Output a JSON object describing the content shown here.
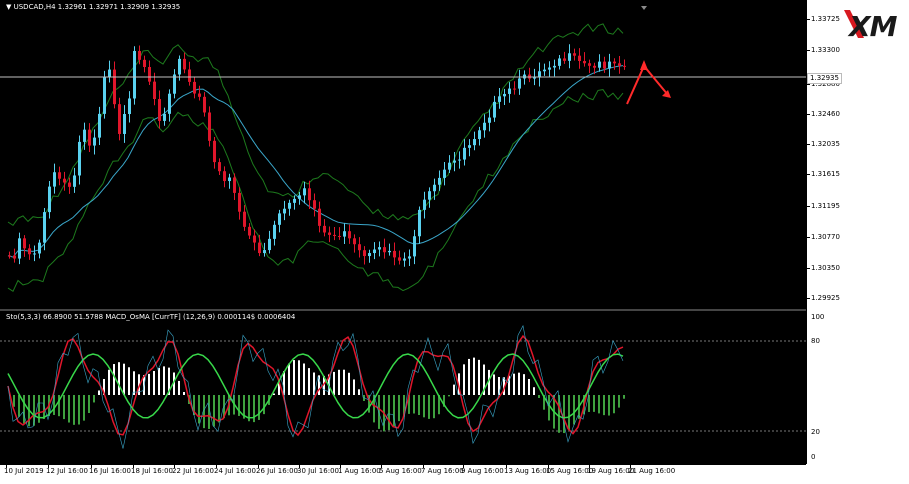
{
  "chart_header": {
    "symbol_line": "▼ USDCAD,H4  1.32961 1.32971 1.32909 1.32935",
    "indicator_line": "Sto(5,3,3) 66.8900 51.5788  MACD_OsMA [CurrTF] (12,26,9) 0.000114$ 0.0006404"
  },
  "price_axis": {
    "ticks": [
      "1.33725",
      "1.33300",
      "1.32880",
      "1.32460",
      "1.32035",
      "1.31615",
      "1.31195",
      "1.30770",
      "1.30350",
      "1.29925"
    ],
    "current_price": "1.32935"
  },
  "oscillator_axis": {
    "ticks": [
      "100",
      "80",
      "20",
      "0"
    ]
  },
  "time_axis": {
    "labels": [
      "10 Jul 2019",
      "12 Jul 16:00",
      "16 Jul 16:00",
      "18 Jul 16:00",
      "22 Jul 16:00",
      "24 Jul 16:00",
      "26 Jul 16:00",
      "30 Jul 16:00",
      "1 Aug 16:00",
      "5 Aug 16:00",
      "7 Aug 16:00",
      "9 Aug 16:00",
      "13 Aug 16:00",
      "15 Aug 16:00",
      "19 Aug 16:00",
      "21 Aug 16:00"
    ]
  },
  "brand": {
    "logo_text": "XM",
    "logo_color": "#1a1a1a",
    "accent_color": "#d71920"
  },
  "colors": {
    "background": "#000000",
    "bull_candle": "#5ad2f0",
    "bear_candle": "#e0162b",
    "bollinger": "#1d7a1d",
    "moving_average": "#3aa6c9",
    "stoch_main": "#e0162b",
    "stoch_signal": "#38d84a",
    "osma_up": "#ffffff",
    "osma_down": "#3fa13f",
    "forecast_arrow": "#ff2a2a"
  }
}
